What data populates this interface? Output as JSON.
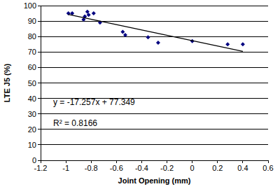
{
  "chart_data": {
    "type": "scatter",
    "x_label": "Joint Opening (mm)",
    "y_label": "LTE J5 (%)",
    "annotations": [
      "y = -17.257x + 77.349",
      "R² = 0.8166"
    ],
    "xlim": [
      -1.2,
      0.6
    ],
    "xticks": [
      -1.2,
      -1,
      -0.8,
      -0.6,
      -0.4,
      -0.2,
      0,
      0.2,
      0.4,
      0.6
    ],
    "ylim": [
      0,
      100
    ],
    "yticks": [
      0,
      10,
      20,
      30,
      40,
      50,
      60,
      70,
      80,
      90,
      100
    ],
    "grid": true,
    "series": [
      {
        "type": "scatter",
        "color": "#000080",
        "marker": "diamond",
        "x": [
          -0.98,
          -0.95,
          -0.86,
          -0.85,
          -0.83,
          -0.82,
          -0.78,
          -0.73,
          -0.55,
          -0.53,
          -0.35,
          -0.27,
          0,
          0.28,
          0.4
        ],
        "values": [
          95,
          95,
          91,
          93,
          96,
          94,
          95,
          89,
          83,
          81,
          79.5,
          76,
          77,
          75,
          75
        ]
      },
      {
        "type": "line",
        "color": "#000000",
        "line_style": "solid",
        "x": [
          -0.98,
          0.4
        ],
        "values": [
          94.3,
          70.4
        ]
      }
    ]
  }
}
